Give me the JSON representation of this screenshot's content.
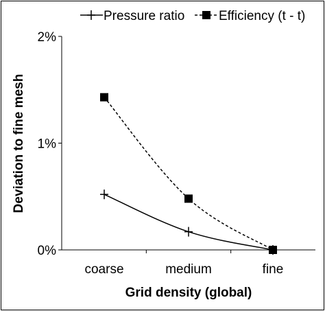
{
  "chart_data": {
    "type": "line",
    "title": "",
    "xlabel": "Grid density (global)",
    "ylabel": "Deviation to fine mesh",
    "categories": [
      "coarse",
      "medium",
      "fine"
    ],
    "ylim": [
      0,
      2
    ],
    "yticks": [
      0,
      1,
      2
    ],
    "ytick_labels": [
      "0%",
      "1%",
      "2%"
    ],
    "grid": false,
    "legend": "top",
    "series": [
      {
        "name": "Pressure ratio",
        "values": [
          0.52,
          0.17,
          0.0
        ],
        "marker": "plus",
        "line": "solid",
        "color": "#000000"
      },
      {
        "name": "Efficiency (t - t)",
        "values": [
          1.43,
          0.48,
          0.0
        ],
        "marker": "square",
        "line": "dashed",
        "color": "#000000"
      }
    ]
  }
}
